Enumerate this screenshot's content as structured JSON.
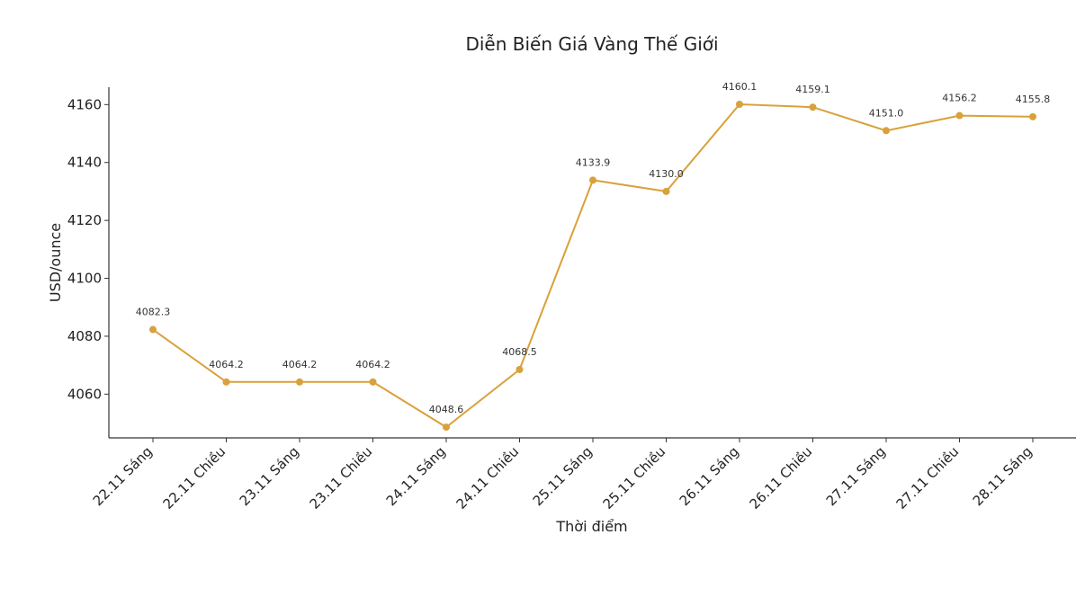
{
  "chart_data": {
    "type": "line",
    "title": "Diễn Biến Giá Vàng Thế Giới",
    "xlabel": "Thời điểm",
    "ylabel": "USD/ounce",
    "categories": [
      "22.11 Sáng",
      "22.11 Chiều",
      "23.11 Sáng",
      "23.11 Chiều",
      "24.11 Sáng",
      "24.11 Chiều",
      "25.11 Sáng",
      "25.11 Chiều",
      "26.11 Sáng",
      "26.11 Chiều",
      "27.11 Sáng",
      "27.11 Chiều",
      "28.11 Sáng"
    ],
    "series": [
      {
        "values": [
          4082.3,
          4064.2,
          4064.2,
          4064.2,
          4048.6,
          4068.5,
          4133.9,
          4130.0,
          4160.1,
          4159.1,
          4151.0,
          4156.2,
          4155.8
        ],
        "color": "#D9A13B"
      }
    ],
    "data_labels": [
      "4082.3",
      "4064.2",
      "4064.2",
      "4064.2",
      "4048.6",
      "4068.5",
      "4133.9",
      "4130.0",
      "4160.1",
      "4159.1",
      "4151.0",
      "4156.2",
      "4155.8"
    ],
    "yticks": [
      4060,
      4080,
      4100,
      4120,
      4140,
      4160
    ],
    "ylim": [
      4044.9,
      4166
    ],
    "grid": false,
    "legend": "none"
  }
}
